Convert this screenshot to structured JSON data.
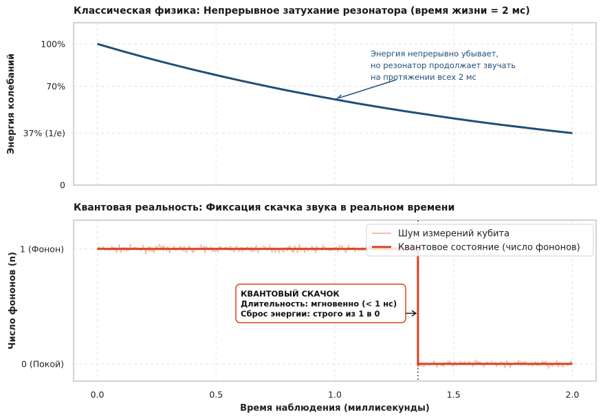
{
  "chart_data": [
    {
      "type": "line",
      "title": "Классическая физика: Непрерывное затухание резонатора (время жизни = 2 мс)",
      "ylabel": "Энергия колебаний",
      "xlim": [
        -0.1,
        2.1
      ],
      "ylim": [
        0,
        1.15
      ],
      "yticks": [
        {
          "value": 0,
          "label": "0"
        },
        {
          "value": 0.3679,
          "label": "37% (1/e)"
        },
        {
          "value": 0.7,
          "label": "70%"
        },
        {
          "value": 1.0,
          "label": "100%"
        }
      ],
      "grid": true,
      "series": [
        {
          "color": "#1f4e79",
          "x": [
            0,
            0.1,
            0.2,
            0.3,
            0.4,
            0.5,
            0.6,
            0.7,
            0.8,
            0.9,
            1.0,
            1.1,
            1.2,
            1.3,
            1.4,
            1.5,
            1.6,
            1.7,
            1.8,
            1.9,
            2.0
          ],
          "y": [
            1.0,
            0.951,
            0.905,
            0.861,
            0.819,
            0.779,
            0.741,
            0.705,
            0.67,
            0.638,
            0.607,
            0.577,
            0.549,
            0.522,
            0.497,
            0.472,
            0.449,
            0.427,
            0.407,
            0.387,
            0.368
          ]
        }
      ],
      "annotation": {
        "lines": [
          "Энергия непрерывно убывает,",
          "но резонатор продолжает звучать",
          "на протяжении всех 2 мс"
        ],
        "point": [
          1.0,
          0.607
        ],
        "text_at": [
          1.15,
          0.8
        ],
        "color": "#1f4e79"
      }
    },
    {
      "type": "line",
      "title": "Квантовая реальность: Фиксация скачка звука в реальном времени",
      "xlabel": "Время наблюдения (миллисекунды)",
      "ylabel": "Число фононов (n)",
      "xlim": [
        -0.1,
        2.1
      ],
      "ylim": [
        -0.15,
        1.25
      ],
      "xticks": [
        {
          "value": 0.0,
          "label": "0.0"
        },
        {
          "value": 0.5,
          "label": "0.5"
        },
        {
          "value": 1.0,
          "label": "1.0"
        },
        {
          "value": 1.5,
          "label": "1.5"
        },
        {
          "value": 2.0,
          "label": "2.0"
        }
      ],
      "yticks": [
        {
          "value": 0,
          "label": "0 (Покой)"
        },
        {
          "value": 1,
          "label": "1 (Фонон)"
        }
      ],
      "grid": true,
      "legend_position": "top-right",
      "series": [
        {
          "name": "Шум измерений кубита",
          "color": "#f0a58c",
          "style": "noise",
          "noise_amplitude": 0.03,
          "x_range": [
            0,
            2.0
          ],
          "jump_x": 1.35,
          "levels": [
            1,
            0
          ]
        },
        {
          "name": "Квантовое состояние (число фононов)",
          "color": "#d9411e",
          "x": [
            0,
            1.35,
            1.35,
            2.0
          ],
          "y": [
            1,
            1,
            0,
            0
          ]
        }
      ],
      "jump_marker_x": 1.35,
      "box": {
        "lines": [
          "КВАНТОВЫЙ СКАЧОК",
          "Длительность: мгновенно (< 1 нс)",
          "Сброс энергии: строго из 1 в 0"
        ],
        "border_color": "#d9411e",
        "anchor": [
          0.6,
          0.5
        ],
        "points_to": [
          1.35,
          0.5
        ]
      }
    }
  ]
}
